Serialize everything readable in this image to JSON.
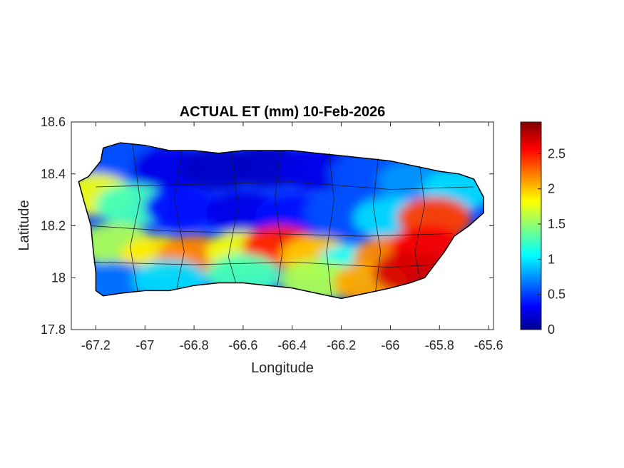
{
  "chart_data": {
    "type": "heatmap",
    "title": "ACTUAL ET (mm) 10-Feb-2026",
    "xlabel": "Longitude",
    "ylabel": "Latitude",
    "xlim": [
      -67.3,
      -65.58
    ],
    "ylim": [
      17.8,
      18.6
    ],
    "x_ticks": [
      -67.2,
      -67,
      -66.8,
      -66.6,
      -66.4,
      -66.2,
      -66,
      -65.8,
      -65.6
    ],
    "x_tick_labels": [
      "-67.2",
      "-67",
      "-66.8",
      "-66.6",
      "-66.4",
      "-66.2",
      "-66",
      "-65.8",
      "-65.6"
    ],
    "y_ticks": [
      17.8,
      18,
      18.2,
      18.4,
      18.6
    ],
    "y_tick_labels": [
      "17.8",
      "18",
      "18.2",
      "18.4",
      "18.6"
    ],
    "colorbar": {
      "colormap": "jet",
      "limits": [
        0,
        2.95
      ],
      "ticks": [
        0,
        0.5,
        1,
        1.5,
        2,
        2.5
      ],
      "tick_labels": [
        "0",
        "0.5",
        "1",
        "1.5",
        "2",
        "2.5"
      ],
      "colors": [
        "#00008f",
        "#0000ff",
        "#00ffff",
        "#ffff00",
        "#ff0000",
        "#800000"
      ]
    },
    "island_outline": [
      [
        -67.27,
        18.37
      ],
      [
        -67.23,
        18.39
      ],
      [
        -67.18,
        18.45
      ],
      [
        -67.17,
        18.5
      ],
      [
        -67.1,
        18.52
      ],
      [
        -67.0,
        18.51
      ],
      [
        -66.9,
        18.49
      ],
      [
        -66.8,
        18.49
      ],
      [
        -66.7,
        18.48
      ],
      [
        -66.6,
        18.49
      ],
      [
        -66.5,
        18.49
      ],
      [
        -66.4,
        18.49
      ],
      [
        -66.3,
        18.48
      ],
      [
        -66.2,
        18.47
      ],
      [
        -66.1,
        18.46
      ],
      [
        -66.0,
        18.45
      ],
      [
        -65.9,
        18.43
      ],
      [
        -65.8,
        18.41
      ],
      [
        -65.72,
        18.4
      ],
      [
        -65.66,
        18.38
      ],
      [
        -65.62,
        18.31
      ],
      [
        -65.62,
        18.25
      ],
      [
        -65.68,
        18.2
      ],
      [
        -65.74,
        18.16
      ],
      [
        -65.78,
        18.1
      ],
      [
        -65.82,
        18.05
      ],
      [
        -65.86,
        18.0
      ],
      [
        -65.92,
        17.98
      ],
      [
        -66.0,
        17.96
      ],
      [
        -66.1,
        17.94
      ],
      [
        -66.2,
        17.92
      ],
      [
        -66.3,
        17.94
      ],
      [
        -66.4,
        17.96
      ],
      [
        -66.5,
        17.97
      ],
      [
        -66.6,
        17.98
      ],
      [
        -66.7,
        17.98
      ],
      [
        -66.8,
        17.97
      ],
      [
        -66.9,
        17.95
      ],
      [
        -67.0,
        17.95
      ],
      [
        -67.1,
        17.94
      ],
      [
        -67.17,
        17.93
      ],
      [
        -67.2,
        17.95
      ],
      [
        -67.2,
        18.02
      ],
      [
        -67.21,
        18.1
      ],
      [
        -67.22,
        18.2
      ],
      [
        -67.25,
        18.3
      ]
    ],
    "et_zones": [
      {
        "lon": -67.1,
        "lat": 18.44,
        "et": 0.6
      },
      {
        "lon": -66.9,
        "lat": 18.42,
        "et": 0.3
      },
      {
        "lon": -66.7,
        "lat": 18.42,
        "et": 0.2
      },
      {
        "lon": -66.5,
        "lat": 18.43,
        "et": 0.2
      },
      {
        "lon": -66.3,
        "lat": 18.42,
        "et": 0.3
      },
      {
        "lon": -66.1,
        "lat": 18.4,
        "et": 0.6
      },
      {
        "lon": -65.9,
        "lat": 18.37,
        "et": 0.8
      },
      {
        "lon": -65.72,
        "lat": 18.34,
        "et": 1.0
      },
      {
        "lon": -67.2,
        "lat": 18.32,
        "et": 1.8
      },
      {
        "lon": -67.05,
        "lat": 18.28,
        "et": 1.3
      },
      {
        "lon": -66.85,
        "lat": 18.27,
        "et": 0.4
      },
      {
        "lon": -66.6,
        "lat": 18.25,
        "et": 0.3
      },
      {
        "lon": -66.4,
        "lat": 18.24,
        "et": 0.4
      },
      {
        "lon": -66.2,
        "lat": 18.25,
        "et": 0.6
      },
      {
        "lon": -66.0,
        "lat": 18.23,
        "et": 1.0
      },
      {
        "lon": -65.82,
        "lat": 18.23,
        "et": 2.4
      },
      {
        "lon": -67.12,
        "lat": 18.13,
        "et": 1.6
      },
      {
        "lon": -66.95,
        "lat": 18.08,
        "et": 1.9
      },
      {
        "lon": -66.8,
        "lat": 18.08,
        "et": 2.2
      },
      {
        "lon": -66.6,
        "lat": 18.1,
        "et": 1.8
      },
      {
        "lon": -66.45,
        "lat": 18.12,
        "et": 2.5
      },
      {
        "lon": -66.3,
        "lat": 18.08,
        "et": 2.0
      },
      {
        "lon": -66.15,
        "lat": 18.05,
        "et": 1.1
      },
      {
        "lon": -66.0,
        "lat": 18.08,
        "et": 2.2
      },
      {
        "lon": -65.85,
        "lat": 18.12,
        "et": 2.6
      },
      {
        "lon": -67.12,
        "lat": 17.98,
        "et": 0.7
      },
      {
        "lon": -66.9,
        "lat": 17.99,
        "et": 1.0
      },
      {
        "lon": -66.6,
        "lat": 18.01,
        "et": 1.3
      },
      {
        "lon": -66.3,
        "lat": 17.99,
        "et": 1.6
      },
      {
        "lon": -66.08,
        "lat": 17.98,
        "et": 2.1
      },
      {
        "lon": -65.92,
        "lat": 18.02,
        "et": 2.7
      }
    ]
  }
}
